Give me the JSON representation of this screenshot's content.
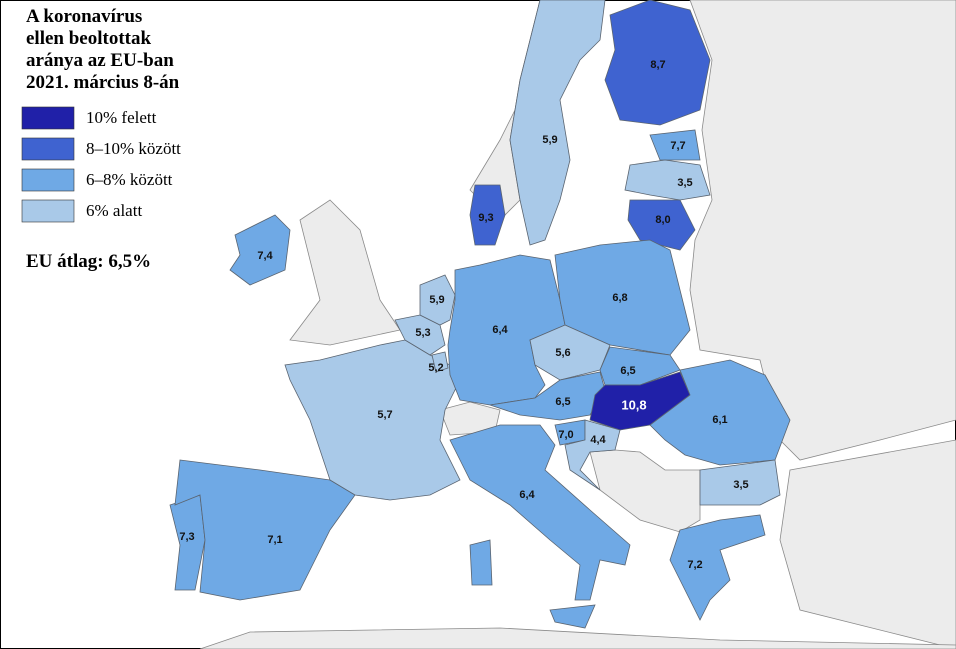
{
  "title_lines": [
    "A koronavírus",
    "ellen beoltottak",
    "aránya az EU-ban",
    "2021. március 8-án"
  ],
  "legend": [
    {
      "label": "10% felett",
      "color": "#2020a8"
    },
    {
      "label": "8–10% között",
      "color": "#3f63d0"
    },
    {
      "label": "6–8% között",
      "color": "#6fa9e5"
    },
    {
      "label": "6% alatt",
      "color": "#a9c9e8"
    }
  ],
  "eu_average": "EU átlag: 6,5%",
  "regions": [
    {
      "label": "7,4",
      "class": 2
    },
    {
      "label": "7,3",
      "class": 2
    },
    {
      "label": "7,1",
      "class": 2
    },
    {
      "label": "5,7",
      "class": 3
    },
    {
      "label": "5,3",
      "class": 3
    },
    {
      "label": "5,9",
      "class": 3
    },
    {
      "label": "5,2",
      "class": 3
    },
    {
      "label": "6,4",
      "class": 2
    },
    {
      "label": "9,3",
      "class": 1
    },
    {
      "label": "5,9",
      "class": 3
    },
    {
      "label": "8,7",
      "class": 1
    },
    {
      "label": "7,7",
      "class": 2
    },
    {
      "label": "3,5",
      "class": 3
    },
    {
      "label": "8,0",
      "class": 1
    },
    {
      "label": "6,8",
      "class": 2
    },
    {
      "label": "5,6",
      "class": 3
    },
    {
      "label": "6,5",
      "class": 2
    },
    {
      "label": "6,5",
      "class": 2
    },
    {
      "label": "10,8",
      "class": 0
    },
    {
      "label": "7,0",
      "class": 2
    },
    {
      "label": "4,4",
      "class": 3
    },
    {
      "label": "6,1",
      "class": 2
    },
    {
      "label": "3,5",
      "class": 3
    },
    {
      "label": "6,4",
      "class": 2
    },
    {
      "label": "7,2",
      "class": 2
    }
  ]
}
